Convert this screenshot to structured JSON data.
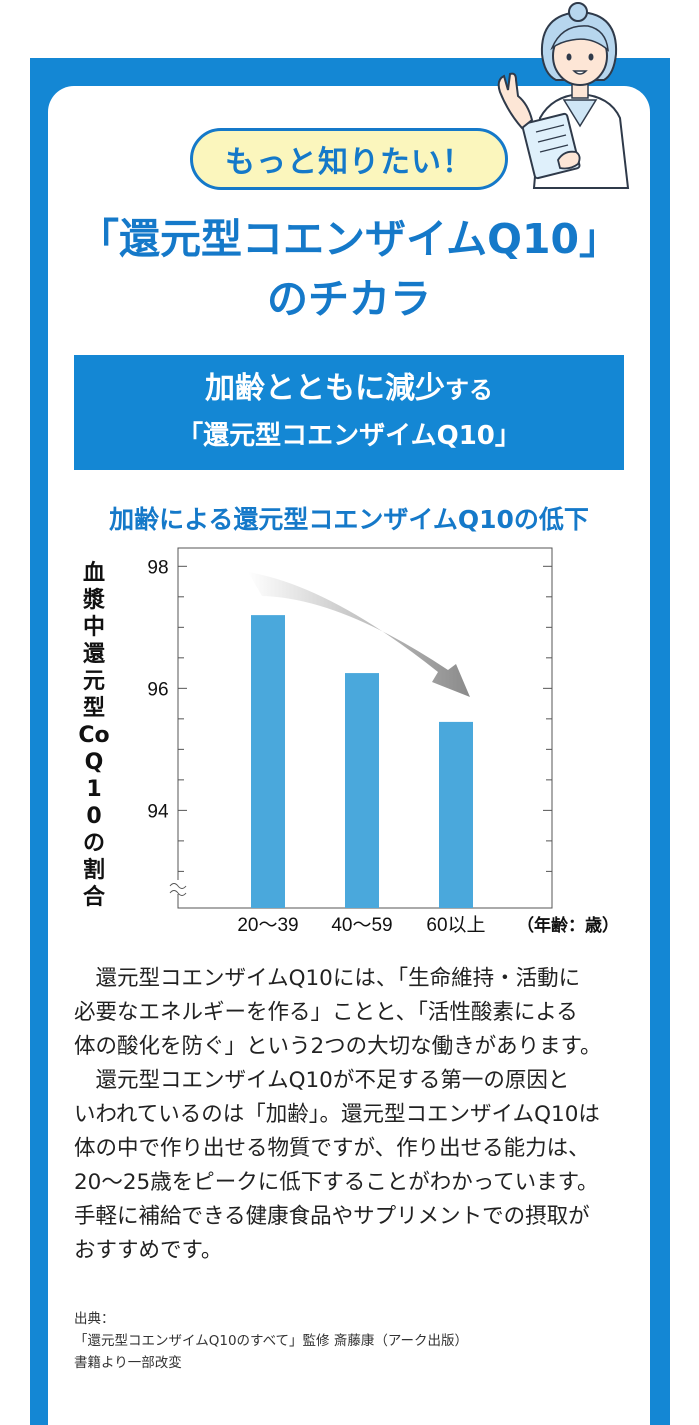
{
  "header": {
    "pill": "もっと知りたい！",
    "title_line1": "「還元型コエンザイムQ10」",
    "title_line2": "のチカラ"
  },
  "banner": {
    "line1_main": "加齢とともに減少",
    "line1_suffix": "する",
    "line2": "「還元型コエンザイムQ10」"
  },
  "colors": {
    "brand_blue": "#1487d4",
    "bar_blue": "#4aa8dc",
    "pill_bg": "#fbf6bd"
  },
  "icons": [
    "doctor-illustration-icon",
    "axis-break-icon",
    "down-trend-arrow-icon"
  ],
  "chart_data": {
    "type": "bar",
    "title": "加齢による還元型コエンザイムQ10の低下",
    "ylabel": "血漿中還元型CoQ10の割合",
    "xlabel_unit": "（年齢：歳）",
    "categories": [
      "20〜39",
      "40〜59",
      "60以上"
    ],
    "values": [
      97.2,
      96.25,
      95.45
    ],
    "yticks": [
      94,
      96,
      98
    ],
    "ylim": [
      92.4,
      98.3
    ],
    "grid": false,
    "annotation": "down-trend arrow"
  },
  "body": {
    "paragraph1": "還元型コエンザイムQ10には、「生命維持・活動に\n必要なエネルギーを作る」ことと、「活性酸素による\n体の酸化を防ぐ」という2つの大切な働きがあります。",
    "paragraph2": "還元型コエンザイムQ10が不足する第一の原因と\nいわれているのは「加齢」。還元型コエンザイムQ10は\n体の中で作り出せる物質ですが、作り出せる能力は、\n20〜25歳をピークに低下することがわかっています。\n手軽に補給できる健康食品やサプリメントでの摂取が\nおすすめです。"
  },
  "source": {
    "label": "出典：",
    "line1": "「還元型コエンザイムQ10のすべて」監修 斎藤康（アーク出版）",
    "line2": "書籍より一部改変"
  }
}
